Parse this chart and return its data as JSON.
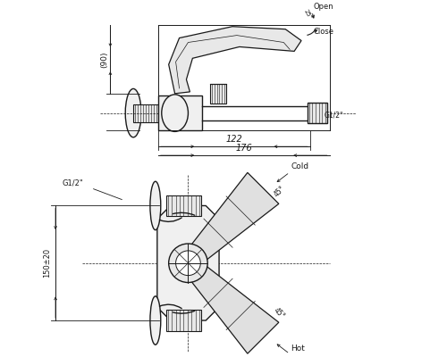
{
  "bg_color": "#ffffff",
  "line_color": "#1a1a1a",
  "fig_width": 5.0,
  "fig_height": 4.0,
  "dpi": 100,
  "top_view": {
    "label_90": "(90)",
    "label_122": "122",
    "label_176": "176",
    "label_G12_right": "G1/2\"",
    "label_open": "Open",
    "label_close": "Close",
    "label_25": "25°"
  },
  "bottom_view": {
    "label_150": "150±20",
    "label_G12_left": "G1/2\"",
    "label_cold": "Cold",
    "label_hot": "Hot",
    "label_45_1": "45°",
    "label_45_2": "45°"
  }
}
